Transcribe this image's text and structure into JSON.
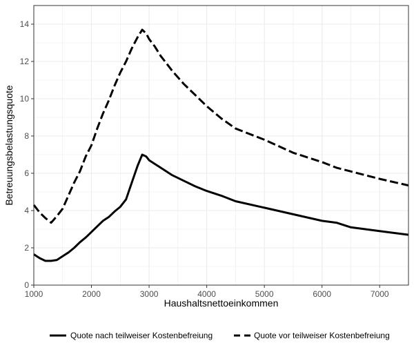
{
  "chart_data": {
    "type": "line",
    "xlabel": "Haushaltsnettoeinkommen",
    "ylabel": "Betreuungsbelastungsquote",
    "xlim": [
      1000,
      7500
    ],
    "ylim": [
      0,
      15
    ],
    "x_ticks": [
      1000,
      2000,
      3000,
      4000,
      5000,
      6000,
      7000
    ],
    "y_ticks": [
      0,
      2,
      4,
      6,
      8,
      10,
      12,
      14
    ],
    "grid": true,
    "legend_position": "bottom",
    "colors": {
      "line": "#000000",
      "grid": "#ebebeb",
      "panel_border": "#333333"
    },
    "series": [
      {
        "name": "Quote nach teilweiser Kostenbefreiung",
        "style": "solid",
        "x": [
          1000,
          1100,
          1200,
          1300,
          1400,
          1500,
          1600,
          1700,
          1800,
          1900,
          2000,
          2100,
          2200,
          2300,
          2400,
          2500,
          2600,
          2700,
          2800,
          2880,
          2950,
          3000,
          3100,
          3200,
          3400,
          3600,
          3800,
          4000,
          4250,
          4500,
          5000,
          5500,
          6000,
          6250,
          6500,
          7000,
          7500
        ],
        "y": [
          1.65,
          1.45,
          1.3,
          1.3,
          1.35,
          1.55,
          1.75,
          2.0,
          2.3,
          2.55,
          2.85,
          3.15,
          3.45,
          3.65,
          3.95,
          4.2,
          4.6,
          5.5,
          6.4,
          7.0,
          6.9,
          6.7,
          6.5,
          6.3,
          5.9,
          5.6,
          5.3,
          5.05,
          4.8,
          4.5,
          4.15,
          3.8,
          3.45,
          3.35,
          3.1,
          2.9,
          2.7
        ]
      },
      {
        "name": "Quote vor teilweiser Kostenbefreiung",
        "style": "dashed",
        "x": [
          1000,
          1100,
          1200,
          1300,
          1400,
          1500,
          1600,
          1700,
          1800,
          1900,
          2000,
          2100,
          2200,
          2300,
          2400,
          2500,
          2600,
          2700,
          2800,
          2880,
          2950,
          3000,
          3100,
          3200,
          3400,
          3600,
          3800,
          4000,
          4250,
          4500,
          5000,
          5500,
          6000,
          6250,
          6500,
          7000,
          7500
        ],
        "y": [
          4.3,
          3.9,
          3.6,
          3.35,
          3.7,
          4.1,
          4.8,
          5.5,
          6.1,
          6.9,
          7.5,
          8.4,
          9.2,
          9.9,
          10.7,
          11.4,
          12.0,
          12.7,
          13.3,
          13.7,
          13.5,
          13.2,
          12.8,
          12.3,
          11.5,
          10.8,
          10.2,
          9.6,
          8.95,
          8.4,
          7.8,
          7.1,
          6.6,
          6.3,
          6.1,
          5.7,
          5.35
        ]
      }
    ]
  }
}
